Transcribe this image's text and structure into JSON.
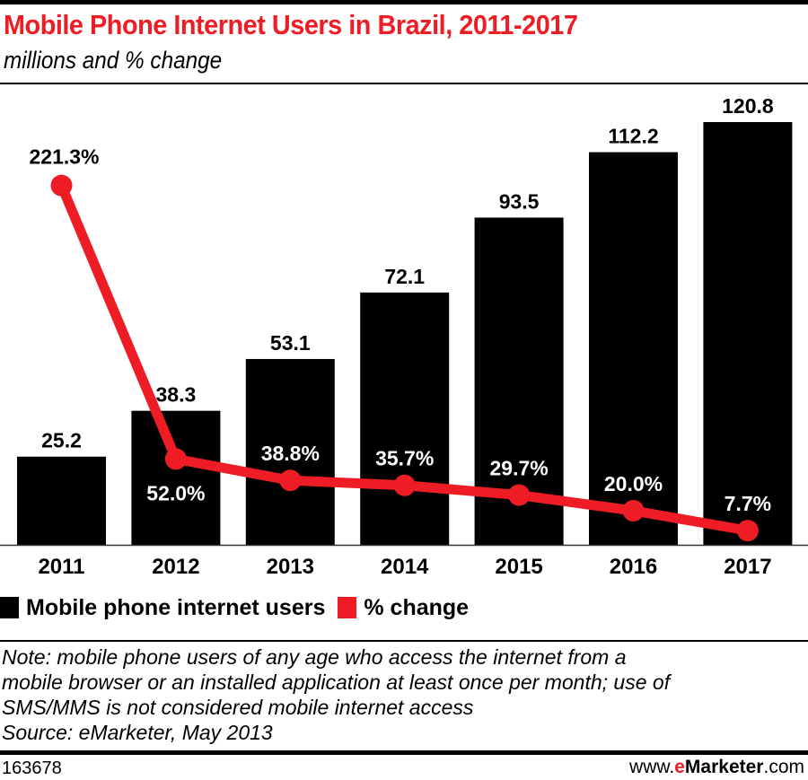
{
  "header": {
    "title": "Mobile Phone Internet Users in Brazil, 2011-2017",
    "subtitle": "millions and % change"
  },
  "colors": {
    "bars": "#000000",
    "line": "#ee1c25",
    "title": "#ee1c25",
    "label_inside_bar": "#ffffff"
  },
  "chart_data": {
    "type": "bar",
    "title": "Mobile Phone Internet Users in Brazil, 2011-2017",
    "subtitle": "millions and % change",
    "xlabel": "",
    "ylabel": "",
    "grid": false,
    "categories": [
      "2011",
      "2012",
      "2013",
      "2014",
      "2015",
      "2016",
      "2017"
    ],
    "series": [
      {
        "name": "Mobile phone internet users",
        "type": "bar",
        "unit": "millions",
        "values": [
          25.2,
          38.3,
          53.1,
          72.1,
          93.5,
          112.2,
          120.8
        ],
        "labels": [
          "25.2",
          "38.3",
          "53.1",
          "72.1",
          "93.5",
          "112.2",
          "120.8"
        ]
      },
      {
        "name": "% change",
        "type": "line",
        "unit": "%",
        "values": [
          221.3,
          52.0,
          38.8,
          35.7,
          29.7,
          20.0,
          7.7
        ],
        "labels": [
          "221.3%",
          "52.0%",
          "38.8%",
          "35.7%",
          "29.7%",
          "20.0%",
          "7.7%"
        ]
      }
    ],
    "legend": {
      "position": "bottom-left",
      "entries": [
        "Mobile phone internet users",
        "% change"
      ]
    }
  },
  "note": "Note: mobile phone users of any age who access the internet from a\nmobile browser or an installed application at least once per month; use of\nSMS/MMS is not considered mobile internet access\nSource: eMarketer, May 2013",
  "footer": {
    "chart_id": "163678",
    "brand_prefix": "www.",
    "brand_e": "e",
    "brand_main": "Marketer",
    "brand_suffix": ".com"
  }
}
